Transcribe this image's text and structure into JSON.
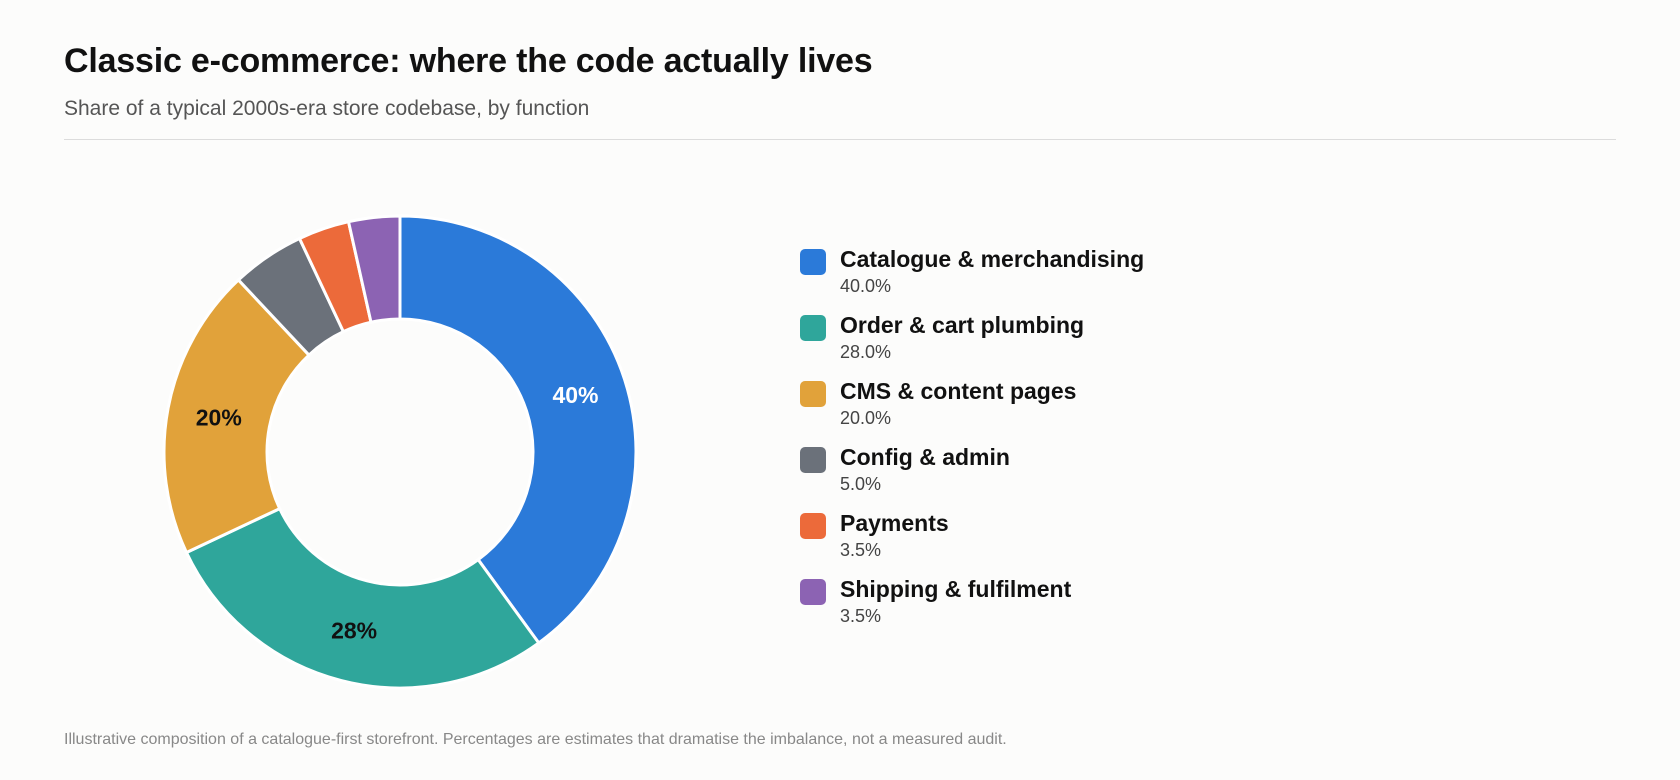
{
  "header": {
    "title": "Classic e-commerce: where the code actually lives",
    "subtitle": "Share of a typical 2000s-era store codebase, by function"
  },
  "footnote": "Illustrative composition of a catalogue-first storefront. Percentages are estimates that dramatise the imbalance, not a measured audit.",
  "chart_data": {
    "type": "pie",
    "variant": "donut",
    "title": "Classic e-commerce: where the code actually lives",
    "subtitle": "Share of a typical 2000s-era store codebase, by function",
    "legend_position": "right",
    "slices": [
      {
        "label": "Catalogue & merchandising",
        "value": 40.0,
        "value_text": "40.0%",
        "slice_label": "40%",
        "color": "#2b7ad9",
        "label_color": "#ffffff"
      },
      {
        "label": "Order & cart plumbing",
        "value": 28.0,
        "value_text": "28.0%",
        "slice_label": "28%",
        "color": "#2fa69b",
        "label_color": "#111111"
      },
      {
        "label": "CMS & content pages",
        "value": 20.0,
        "value_text": "20.0%",
        "slice_label": "20%",
        "color": "#e1a23a",
        "label_color": "#111111"
      },
      {
        "label": "Config & admin",
        "value": 5.0,
        "value_text": "5.0%",
        "slice_label": "",
        "color": "#6b717a",
        "label_color": "#111111"
      },
      {
        "label": "Payments",
        "value": 3.5,
        "value_text": "3.5%",
        "slice_label": "",
        "color": "#ec6a3a",
        "label_color": "#111111"
      },
      {
        "label": "Shipping & fulfilment",
        "value": 3.5,
        "value_text": "3.5%",
        "slice_label": "",
        "color": "#8c63b3",
        "label_color": "#111111"
      }
    ]
  }
}
